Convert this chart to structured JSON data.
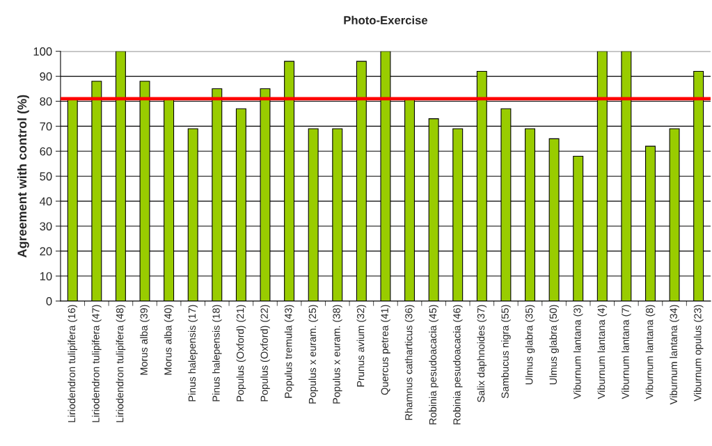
{
  "chart_data": {
    "type": "bar",
    "title": "Photo-Exercise",
    "ylabel": "Agreement with control (%)",
    "categories": [
      "Liriodendron tulipifera (16)",
      "Liriodendron tulipifera (47)",
      "Liriodendron tulipifera (48)",
      "Morus alba (39)",
      "Morus alba (40)",
      "Pinus halepensis (17)",
      "Pinus halepensis (18)",
      "Populus (Oxford) (21)",
      "Populus (Oxford) (22)",
      "Populus tremula (43)",
      "Populus x euram. (25)",
      "Populus x euram. (38)",
      "Prunus avium (32)",
      "Quercus petrea (41)",
      "Rhamnus catharticus (36)",
      "Robinia pesudoacacia (45)",
      "Robinia pesudoacacia (46)",
      "Salix daphnoides (37)",
      "Sambucus nigra (55)",
      "Ulmus glabra (35)",
      "Ulmus glabra (50)",
      "Viburnum lantana (3)",
      "Viburnum lantana (4)",
      "Viburnum lantana (7)",
      "Viburnum lantana (8)",
      "Viburnum lantana (34)",
      "Viburnum opulus (23)"
    ],
    "values": [
      81,
      88,
      100,
      88,
      81,
      69,
      85,
      77,
      85,
      96,
      69,
      69,
      96,
      100,
      81,
      73,
      69,
      92,
      77,
      69,
      65,
      58,
      100,
      100,
      62,
      69,
      92
    ],
    "color": "#99cc00",
    "ylim": [
      0,
      100
    ],
    "yticks": [
      0,
      10,
      20,
      30,
      40,
      50,
      60,
      70,
      80,
      90,
      100
    ],
    "grid": "y",
    "ref_lines": [
      {
        "axis": "y",
        "value": 81,
        "color": "#ff0000",
        "line_style": "solid"
      }
    ]
  }
}
